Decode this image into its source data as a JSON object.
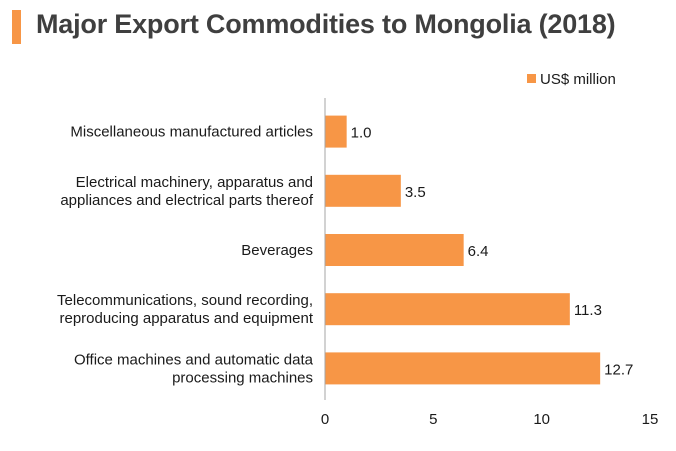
{
  "title": "Major Export Commodities to Mongolia (2018)",
  "colors": {
    "accent": "#f79646",
    "bar": "#f79646",
    "axis": "#a6a6a6",
    "text": "#1a1a1a"
  },
  "chart_data": {
    "type": "bar",
    "orientation": "horizontal",
    "title": "Major Export Commodities to Mongolia (2018)",
    "categories": [
      [
        "Miscellaneous manufactured articles"
      ],
      [
        "Electrical machinery, apparatus and",
        "appliances and electrical parts thereof"
      ],
      [
        "Beverages"
      ],
      [
        "Telecommunications, sound recording,",
        "reproducing apparatus and equipment"
      ],
      [
        "Office machines and automatic data",
        "processing machines"
      ]
    ],
    "series": [
      {
        "name": "US$ million",
        "values": [
          1.0,
          3.5,
          6.4,
          11.3,
          12.7
        ]
      }
    ],
    "data_labels": [
      "1.0",
      "3.5",
      "6.4",
      "11.3",
      "12.7"
    ],
    "xlim": [
      0,
      15
    ],
    "xticks": [
      "0",
      "5",
      "10",
      "15"
    ],
    "xlabel": "",
    "ylabel": "",
    "grid": false,
    "legend": "top-right"
  }
}
